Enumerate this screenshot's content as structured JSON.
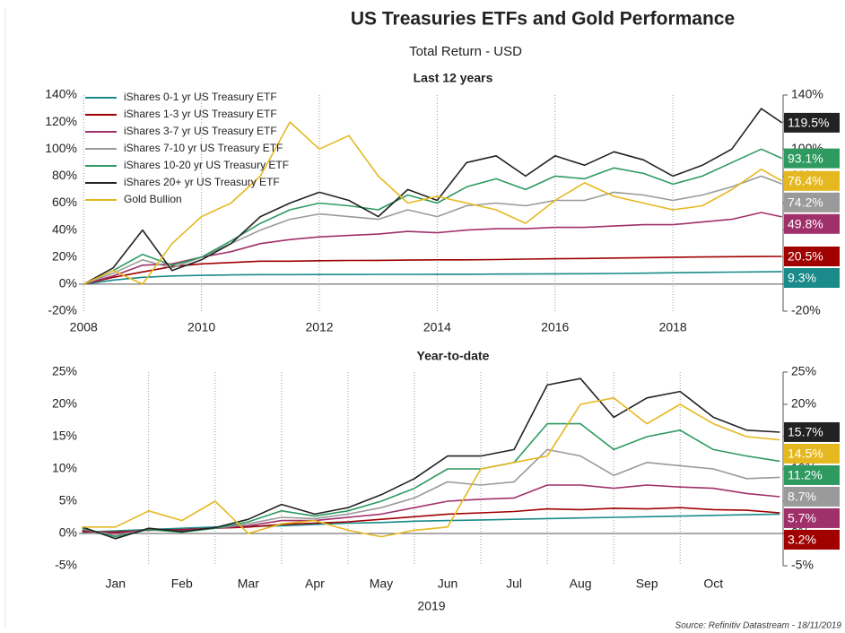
{
  "title": "US Treasuries ETFs and Gold Performance",
  "subtitle": "Total Return - USD",
  "source": "Source: Refinitiv Datastream - 18/11/2019",
  "chart_data": [
    {
      "type": "line",
      "title": "Last 12 years",
      "legend": "upper left",
      "grid": "x",
      "x": [
        2008,
        2008.5,
        2009,
        2009.5,
        2010,
        2010.5,
        2011,
        2011.5,
        2012,
        2012.5,
        2013,
        2013.5,
        2014,
        2014.5,
        2015,
        2015.5,
        2016,
        2016.5,
        2017,
        2017.5,
        2018,
        2018.5,
        2019,
        2019.5,
        2019.85
      ],
      "xlim": [
        2007.92,
        2019.87
      ],
      "xticks": [
        2008,
        2010,
        2012,
        2014,
        2016,
        2018
      ],
      "ylim": [
        -20,
        140
      ],
      "yticks": [
        {
          "value": -20,
          "label": "-20%"
        },
        {
          "value": 0,
          "label": "0%"
        },
        {
          "value": 20,
          "label": "20%"
        },
        {
          "value": 40,
          "label": "40%"
        },
        {
          "value": 60,
          "label": "60%"
        },
        {
          "value": 80,
          "label": "80%"
        },
        {
          "value": 100,
          "label": "100%"
        },
        {
          "value": 120,
          "label": "120%"
        },
        {
          "value": 140,
          "label": "140%"
        }
      ],
      "series": [
        {
          "name": "iShares 0-1 yr US Treasury ETF",
          "color": "#1a8a8a",
          "end_label": "9.3%",
          "values": [
            0,
            3,
            5,
            6,
            6.5,
            6.8,
            7,
            7,
            7.1,
            7.1,
            7.2,
            7.2,
            7.3,
            7.3,
            7.4,
            7.5,
            7.6,
            7.7,
            7.9,
            8.1,
            8.4,
            8.7,
            8.9,
            9.1,
            9.3
          ]
        },
        {
          "name": "iShares 1-3 yr US Treasury ETF",
          "color": "#a00000",
          "end_label": "20.5%",
          "values": [
            0,
            5,
            9,
            13,
            15,
            16,
            17,
            17,
            17.3,
            17.5,
            17.6,
            17.8,
            18,
            18,
            18.2,
            18.5,
            18.8,
            19,
            19.3,
            19.6,
            19.9,
            20.1,
            20.3,
            20.4,
            20.5
          ]
        },
        {
          "name": "iShares 3-7 yr US Treasury ETF",
          "color": "#a0306a",
          "end_label": "49.8%",
          "values": [
            0,
            6,
            14,
            15,
            20,
            24,
            30,
            33,
            35,
            36,
            37,
            39,
            38,
            40,
            41,
            41,
            42,
            42,
            43,
            44,
            44,
            46,
            48,
            53,
            49.8
          ]
        },
        {
          "name": "iShares 7-10 yr US Treasury ETF",
          "color": "#9a9a9a",
          "end_label": "74.2%",
          "values": [
            0,
            8,
            18,
            12,
            20,
            30,
            40,
            48,
            52,
            50,
            48,
            55,
            50,
            58,
            60,
            58,
            62,
            62,
            68,
            66,
            62,
            66,
            72,
            80,
            74.2
          ]
        },
        {
          "name": "iShares 10-20 yr US Treasury ETF",
          "color": "#2e9a60",
          "end_label": "93.1%",
          "values": [
            0,
            10,
            22,
            14,
            20,
            32,
            45,
            55,
            60,
            58,
            55,
            66,
            60,
            72,
            78,
            70,
            80,
            78,
            86,
            82,
            74,
            80,
            90,
            100,
            93.1
          ]
        },
        {
          "name": "iShares 20+ yr US Treasury ETF",
          "color": "#222222",
          "end_label": "119.5%",
          "values": [
            0,
            12,
            40,
            10,
            18,
            30,
            50,
            60,
            68,
            62,
            50,
            70,
            62,
            90,
            95,
            80,
            95,
            88,
            98,
            92,
            80,
            88,
            100,
            130,
            119.5
          ]
        },
        {
          "name": "Gold Bullion",
          "color": "#e6b820",
          "end_label": "76.4%",
          "values": [
            0,
            10,
            0,
            30,
            50,
            60,
            80,
            120,
            100,
            110,
            80,
            60,
            65,
            60,
            55,
            45,
            62,
            75,
            65,
            60,
            55,
            58,
            70,
            85,
            76.4
          ]
        }
      ]
    },
    {
      "type": "line",
      "title": "Year-to-date",
      "xlabel": "2019",
      "grid": "x",
      "x": [
        0,
        0.5,
        1,
        1.5,
        2,
        2.5,
        3,
        3.5,
        4,
        4.5,
        5,
        5.5,
        6,
        6.5,
        7,
        7.5,
        8,
        8.5,
        9,
        9.5,
        10,
        10.5
      ],
      "xlim": [
        -0.05,
        10.55
      ],
      "xticks": [
        {
          "value": 0,
          "label": "Jan"
        },
        {
          "value": 1,
          "label": "Feb"
        },
        {
          "value": 2,
          "label": "Mar"
        },
        {
          "value": 3,
          "label": "Apr"
        },
        {
          "value": 4,
          "label": "May"
        },
        {
          "value": 5,
          "label": "Jun"
        },
        {
          "value": 6,
          "label": "Jul"
        },
        {
          "value": 7,
          "label": "Aug"
        },
        {
          "value": 8,
          "label": "Sep"
        },
        {
          "value": 9,
          "label": "Oct"
        }
      ],
      "ylim": [
        -5,
        25
      ],
      "yticks": [
        {
          "value": -5,
          "label": "-5%"
        },
        {
          "value": 0,
          "label": "0%"
        },
        {
          "value": 5,
          "label": "5%"
        },
        {
          "value": 10,
          "label": "10%"
        },
        {
          "value": 15,
          "label": "15%"
        },
        {
          "value": 20,
          "label": "20%"
        },
        {
          "value": 25,
          "label": "25%"
        }
      ],
      "series": [
        {
          "color": "#1a8a8a",
          "values": [
            0.2,
            0.4,
            0.6,
            0.8,
            1,
            1.1,
            1.2,
            1.4,
            1.6,
            1.7,
            1.9,
            2,
            2.1,
            2.2,
            2.3,
            2.4,
            2.5,
            2.6,
            2.7,
            2.8,
            2.9,
            3.0
          ]
        },
        {
          "color": "#a00000",
          "end_label": "3.2%",
          "values": [
            0.3,
            0.2,
            0.5,
            0.6,
            0.8,
            1,
            1.4,
            1.6,
            1.8,
            2.2,
            2.6,
            3,
            3.2,
            3.4,
            3.8,
            3.7,
            3.9,
            3.8,
            4,
            3.7,
            3.6,
            3.2
          ]
        },
        {
          "color": "#a0306a",
          "end_label": "5.7%",
          "values": [
            0.5,
            0,
            0.6,
            0.5,
            0.8,
            1.2,
            2,
            2,
            2.5,
            3,
            4,
            5,
            5.3,
            5.5,
            7.5,
            7.5,
            7,
            7.5,
            7.2,
            7,
            6.2,
            5.7
          ]
        },
        {
          "color": "#9a9a9a",
          "end_label": "8.7%",
          "values": [
            0.7,
            -0.3,
            0.6,
            0.3,
            0.8,
            1.5,
            2.5,
            2.3,
            3,
            4,
            5.5,
            8,
            7.5,
            8,
            13,
            12,
            9,
            11,
            10.5,
            10,
            8.5,
            8.7
          ]
        },
        {
          "color": "#2e9a60",
          "end_label": "11.2%",
          "values": [
            0.8,
            -0.5,
            0.6,
            0.2,
            0.8,
            1.8,
            3.5,
            2.7,
            3.5,
            5,
            7,
            10,
            10,
            11,
            17,
            17,
            13,
            15,
            16,
            13,
            12,
            11.2
          ]
        },
        {
          "color": "#222222",
          "end_label": "15.7%",
          "values": [
            1,
            -0.8,
            0.8,
            0.3,
            0.9,
            2.2,
            4.5,
            3,
            4,
            6,
            8.5,
            12,
            12,
            13,
            23,
            24,
            18,
            21,
            22,
            18,
            16,
            15.7
          ]
        },
        {
          "color": "#e6b820",
          "end_label": "14.5%",
          "values": [
            1,
            1,
            3.5,
            2,
            5,
            0,
            1.5,
            2,
            0.5,
            -0.5,
            0.5,
            1,
            10,
            11,
            12,
            20,
            21,
            17,
            20,
            17,
            15,
            14.5
          ]
        }
      ]
    }
  ]
}
